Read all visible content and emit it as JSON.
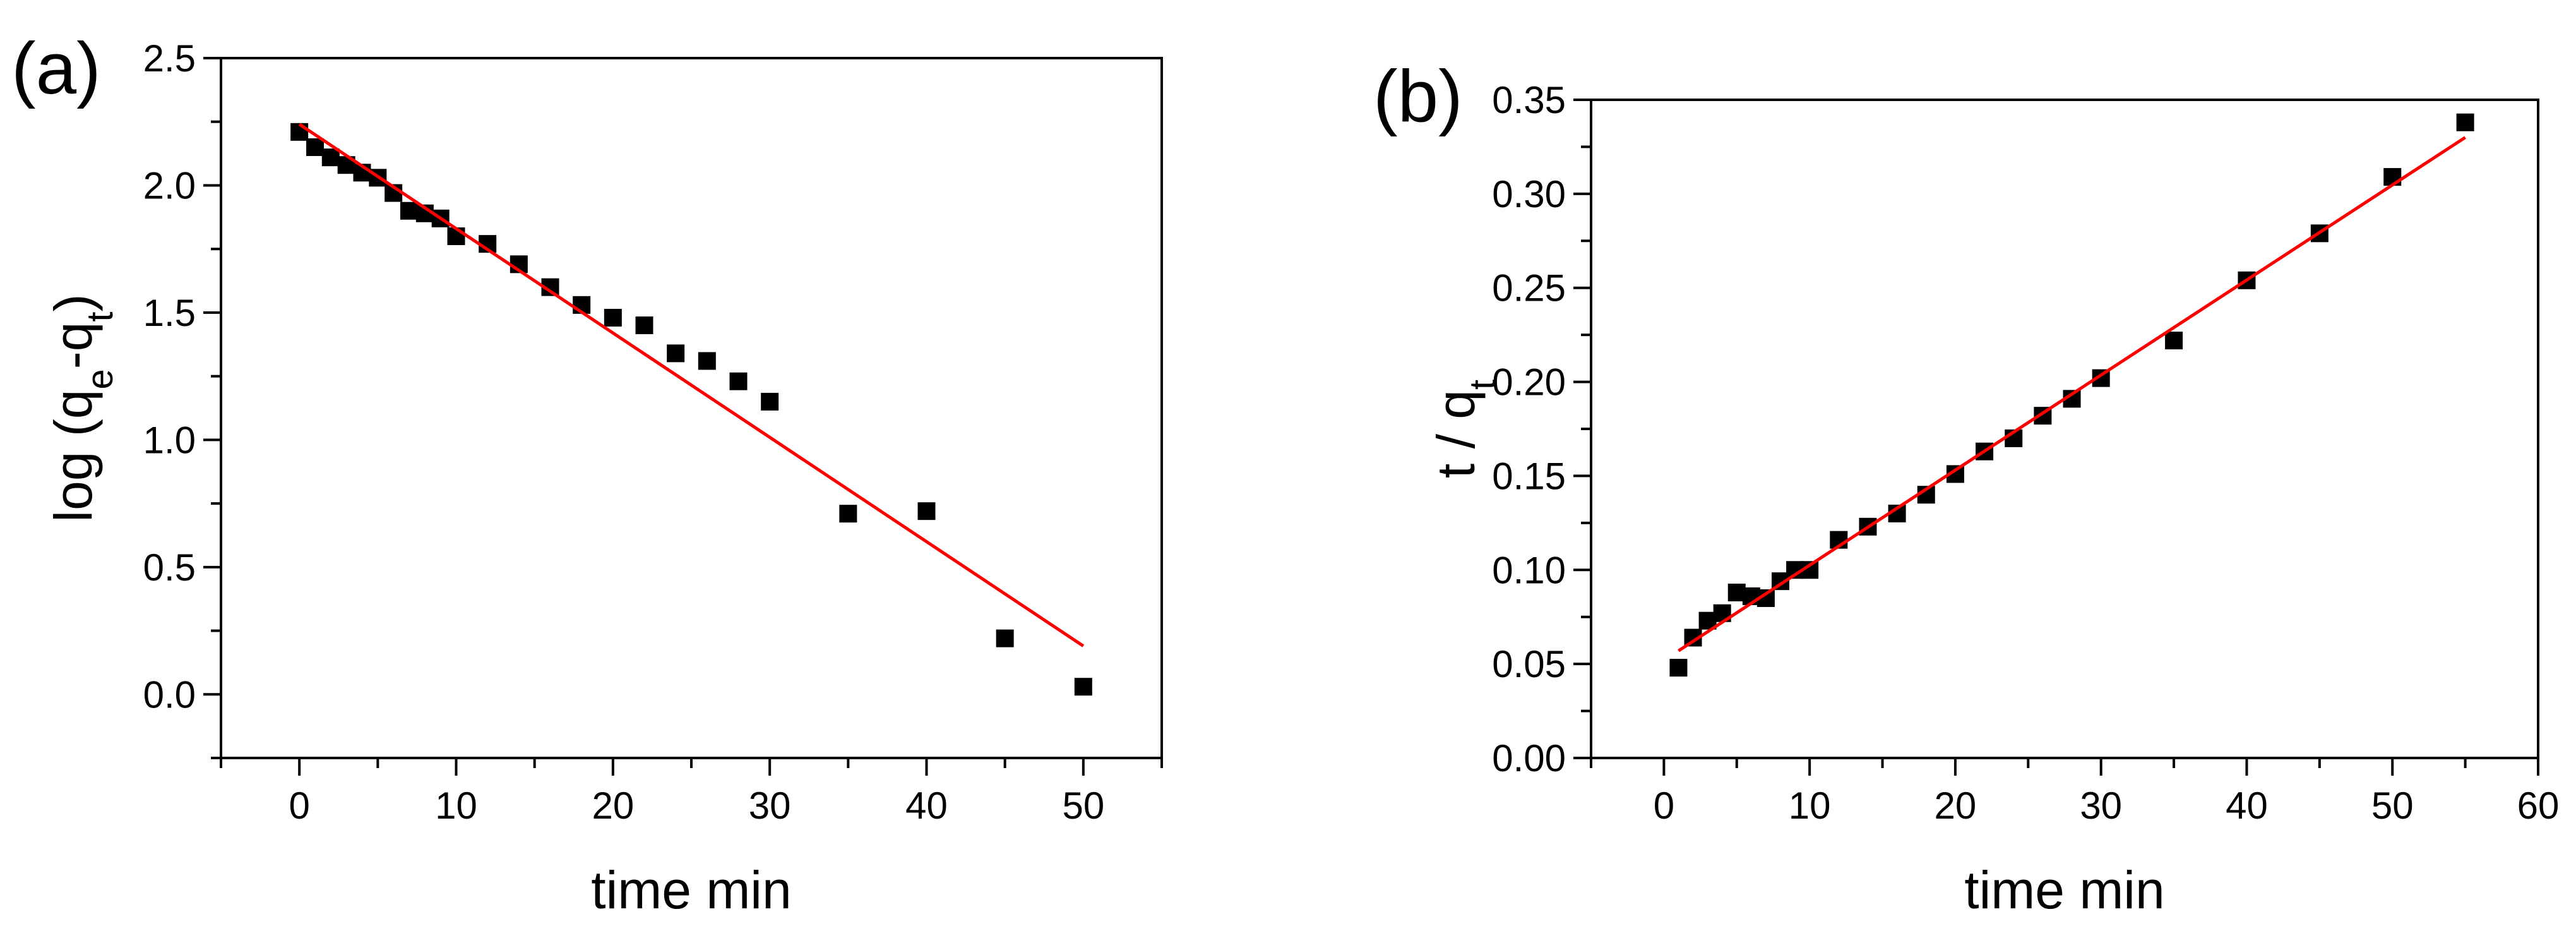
{
  "chart_data": [
    {
      "type": "scatter",
      "panel_label": "(a)",
      "title": "",
      "xlabel": "time min",
      "ylabel": {
        "prefix": "log (q",
        "sub1": "e",
        "mid": "-q",
        "sub2": "t",
        "suffix": ")"
      },
      "xlim": [
        -5,
        55
      ],
      "ylim": [
        -0.25,
        2.5
      ],
      "x_ticks": [
        0,
        10,
        20,
        30,
        40,
        50
      ],
      "x_tick_labels": [
        "0",
        "10",
        "20",
        "30",
        "40",
        "50"
      ],
      "y_ticks": [
        0.0,
        0.5,
        1.0,
        1.5,
        2.0,
        2.5
      ],
      "y_tick_labels": [
        "0.0",
        "0.5",
        "1.0",
        "1.5",
        "2.0",
        "2.5"
      ],
      "grid": false,
      "series": [
        {
          "kind": "points",
          "color": "#000000",
          "marker": "square",
          "x": [
            0,
            1,
            2,
            3,
            4,
            5,
            6,
            7,
            8,
            9,
            10,
            12,
            14,
            16,
            18,
            20,
            22,
            24,
            26,
            28,
            30,
            35,
            40,
            45,
            50
          ],
          "y": [
            2.21,
            2.15,
            2.11,
            2.08,
            2.05,
            2.03,
            1.97,
            1.9,
            1.89,
            1.87,
            1.8,
            1.77,
            1.69,
            1.6,
            1.53,
            1.48,
            1.45,
            1.34,
            1.31,
            1.23,
            1.15,
            0.71,
            0.72,
            0.22,
            0.03
          ]
        },
        {
          "kind": "fit-line",
          "color": "#ff0000",
          "x": [
            0,
            50
          ],
          "y": [
            2.24,
            0.19
          ]
        }
      ]
    },
    {
      "type": "scatter",
      "panel_label": "(b)",
      "title": "",
      "xlabel": "time min",
      "ylabel": {
        "prefix": "t / q",
        "sub1": "t"
      },
      "xlim": [
        -5,
        60
      ],
      "ylim": [
        0,
        0.35
      ],
      "x_ticks": [
        0,
        10,
        20,
        30,
        40,
        50,
        60
      ],
      "x_tick_labels": [
        "0",
        "10",
        "20",
        "30",
        "40",
        "50",
        "60"
      ],
      "y_ticks": [
        0,
        0.05,
        0.1,
        0.15,
        0.2,
        0.25,
        0.3,
        0.35
      ],
      "y_tick_labels": [
        "0.00",
        "0.05",
        "0.10",
        "0.15",
        "0.20",
        "0.25",
        "0.30",
        "0.35"
      ],
      "grid": false,
      "series": [
        {
          "kind": "points",
          "color": "#000000",
          "marker": "square",
          "x": [
            1,
            2,
            3,
            4,
            5,
            6,
            7,
            8,
            9,
            10,
            12,
            14,
            16,
            18,
            20,
            22,
            24,
            26,
            28,
            30,
            35,
            40,
            45,
            50,
            55
          ],
          "y": [
            0.048,
            0.064,
            0.073,
            0.077,
            0.088,
            0.086,
            0.085,
            0.094,
            0.1,
            0.1,
            0.116,
            0.123,
            0.13,
            0.14,
            0.151,
            0.163,
            0.17,
            0.182,
            0.191,
            0.202,
            0.222,
            0.254,
            0.279,
            0.309,
            0.338
          ]
        },
        {
          "kind": "fit-line",
          "color": "#ff0000",
          "x": [
            1,
            55
          ],
          "y": [
            0.057,
            0.33
          ]
        }
      ]
    }
  ]
}
